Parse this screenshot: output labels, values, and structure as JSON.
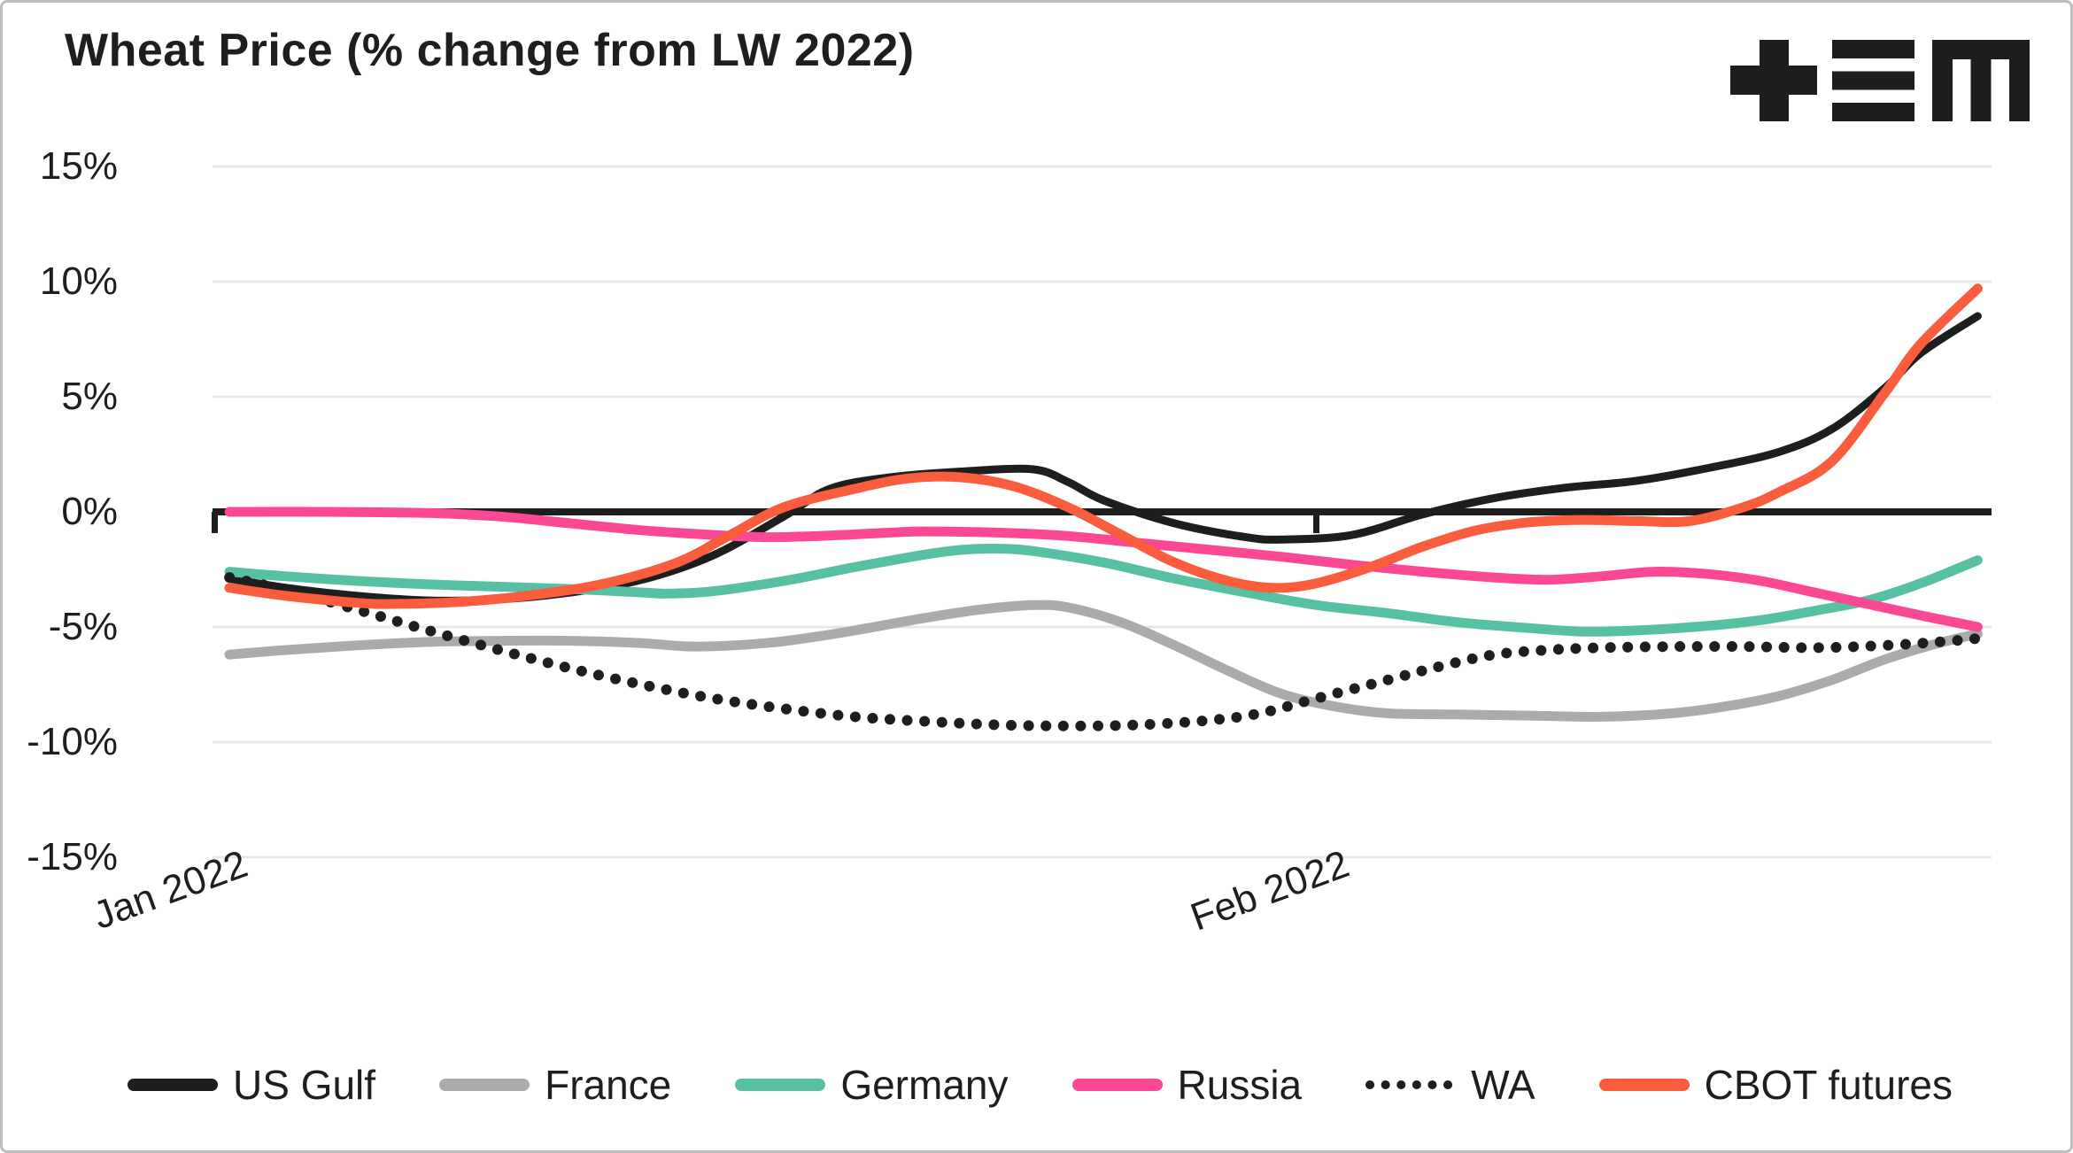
{
  "header": {
    "title": "Wheat Price (% change from LW 2022)",
    "logo_icon": "plus-triple-bar-m-logo"
  },
  "colors": {
    "text": "#1e1e1e",
    "gridline": "#e8e8e8",
    "zero_axis": "#1e1e1e",
    "background": "#ffffff",
    "frame_border": "#bcbec0"
  },
  "chart_data": {
    "type": "line",
    "title": "Wheat Price (% change from LW 2022)",
    "grid": true,
    "legend_position": "bottom",
    "x_axis": {
      "unit": "days since Jan 1 2022",
      "ticks": [
        {
          "label": "Jan 2022",
          "day": 0
        },
        {
          "label": "Feb 2022",
          "day": 31
        }
      ],
      "range_days": [
        0,
        50
      ],
      "label_rotation_deg": -20
    },
    "y_axis": {
      "ticks": [
        {
          "label": "15%",
          "value": 15
        },
        {
          "label": "10%",
          "value": 10
        },
        {
          "label": "5%",
          "value": 5
        },
        {
          "label": "0%",
          "value": 0
        },
        {
          "label": "-5%",
          "value": -5
        },
        {
          "label": "-10%",
          "value": -10
        },
        {
          "label": "-15%",
          "value": -15
        }
      ],
      "zero_line": true
    },
    "series": [
      {
        "name": "US Gulf",
        "color": "#1e1e1e",
        "style": "solid",
        "width": 9,
        "points": [
          [
            0.4,
            -2.9
          ],
          [
            2,
            -3.3
          ],
          [
            4,
            -3.65
          ],
          [
            6,
            -3.85
          ],
          [
            8,
            -3.8
          ],
          [
            10,
            -3.5
          ],
          [
            12,
            -2.95
          ],
          [
            14,
            -1.9
          ],
          [
            16,
            -0.2
          ],
          [
            17.3,
            1.0
          ],
          [
            19,
            1.5
          ],
          [
            21,
            1.75
          ],
          [
            23,
            1.85
          ],
          [
            24,
            1.3
          ],
          [
            25,
            0.5
          ],
          [
            27,
            -0.5
          ],
          [
            29,
            -1.1
          ],
          [
            30,
            -1.2
          ],
          [
            32,
            -1.0
          ],
          [
            34,
            -0.1
          ],
          [
            36,
            0.6
          ],
          [
            38,
            1.05
          ],
          [
            40,
            1.35
          ],
          [
            42,
            1.9
          ],
          [
            44,
            2.6
          ],
          [
            45.5,
            3.6
          ],
          [
            47,
            5.4
          ],
          [
            48,
            6.9
          ],
          [
            49.6,
            8.5
          ]
        ]
      },
      {
        "name": "France",
        "color": "#ababab",
        "style": "solid",
        "width": 11,
        "points": [
          [
            0.4,
            -6.2
          ],
          [
            2,
            -6.0
          ],
          [
            4,
            -5.8
          ],
          [
            6,
            -5.65
          ],
          [
            8,
            -5.6
          ],
          [
            10,
            -5.6
          ],
          [
            12,
            -5.7
          ],
          [
            13.5,
            -5.85
          ],
          [
            15.5,
            -5.7
          ],
          [
            17,
            -5.4
          ],
          [
            18,
            -5.15
          ],
          [
            20,
            -4.6
          ],
          [
            21.5,
            -4.25
          ],
          [
            23,
            -4.05
          ],
          [
            24,
            -4.15
          ],
          [
            25.5,
            -4.8
          ],
          [
            27,
            -5.8
          ],
          [
            28.5,
            -6.9
          ],
          [
            30,
            -7.9
          ],
          [
            31.5,
            -8.45
          ],
          [
            33,
            -8.75
          ],
          [
            35,
            -8.8
          ],
          [
            37,
            -8.85
          ],
          [
            39,
            -8.9
          ],
          [
            41,
            -8.75
          ],
          [
            42.5,
            -8.45
          ],
          [
            44,
            -8.0
          ],
          [
            45.5,
            -7.3
          ],
          [
            47,
            -6.4
          ],
          [
            48.5,
            -5.7
          ],
          [
            49.6,
            -5.3
          ]
        ]
      },
      {
        "name": "Germany",
        "color": "#58c0a2",
        "style": "solid",
        "width": 11,
        "points": [
          [
            0.4,
            -2.6
          ],
          [
            2,
            -2.8
          ],
          [
            4,
            -3.0
          ],
          [
            6,
            -3.15
          ],
          [
            8,
            -3.25
          ],
          [
            10,
            -3.35
          ],
          [
            12,
            -3.5
          ],
          [
            12.7,
            -3.55
          ],
          [
            14,
            -3.45
          ],
          [
            16,
            -3.0
          ],
          [
            18,
            -2.4
          ],
          [
            20,
            -1.85
          ],
          [
            21,
            -1.65
          ],
          [
            22,
            -1.6
          ],
          [
            23,
            -1.7
          ],
          [
            25,
            -2.2
          ],
          [
            27,
            -2.9
          ],
          [
            29,
            -3.5
          ],
          [
            31,
            -4.05
          ],
          [
            33,
            -4.4
          ],
          [
            35,
            -4.8
          ],
          [
            37,
            -5.05
          ],
          [
            38.5,
            -5.2
          ],
          [
            40,
            -5.15
          ],
          [
            42,
            -4.95
          ],
          [
            43.5,
            -4.7
          ],
          [
            45,
            -4.3
          ],
          [
            46.5,
            -3.85
          ],
          [
            48,
            -3.1
          ],
          [
            49.6,
            -2.1
          ]
        ]
      },
      {
        "name": "Russia",
        "color": "#fb4895",
        "style": "solid",
        "width": 11,
        "points": [
          [
            0.4,
            0.0
          ],
          [
            3,
            0.0
          ],
          [
            6,
            -0.05
          ],
          [
            8,
            -0.2
          ],
          [
            10,
            -0.5
          ],
          [
            12,
            -0.8
          ],
          [
            14,
            -1.0
          ],
          [
            15.5,
            -1.1
          ],
          [
            17,
            -1.05
          ],
          [
            19,
            -0.9
          ],
          [
            20,
            -0.85
          ],
          [
            22,
            -0.9
          ],
          [
            24,
            -1.05
          ],
          [
            26,
            -1.35
          ],
          [
            28,
            -1.65
          ],
          [
            30,
            -1.95
          ],
          [
            32,
            -2.3
          ],
          [
            34,
            -2.6
          ],
          [
            36,
            -2.85
          ],
          [
            37.5,
            -2.95
          ],
          [
            39,
            -2.8
          ],
          [
            40.5,
            -2.6
          ],
          [
            42,
            -2.7
          ],
          [
            43.5,
            -3.0
          ],
          [
            45,
            -3.5
          ],
          [
            46.5,
            -4.0
          ],
          [
            48,
            -4.5
          ],
          [
            49.6,
            -5.0
          ]
        ]
      },
      {
        "name": "WA",
        "color": "#1e1e1e",
        "style": "dotted",
        "width": 12,
        "points": [
          [
            0.4,
            -2.85
          ],
          [
            2,
            -3.4
          ],
          [
            4,
            -4.25
          ],
          [
            6,
            -5.15
          ],
          [
            8,
            -6.0
          ],
          [
            10,
            -6.8
          ],
          [
            12,
            -7.5
          ],
          [
            14,
            -8.1
          ],
          [
            16,
            -8.55
          ],
          [
            18,
            -8.9
          ],
          [
            20,
            -9.1
          ],
          [
            22,
            -9.25
          ],
          [
            24,
            -9.3
          ],
          [
            26,
            -9.25
          ],
          [
            28,
            -9.05
          ],
          [
            29.4,
            -8.75
          ],
          [
            31,
            -8.1
          ],
          [
            33,
            -7.3
          ],
          [
            34.5,
            -6.7
          ],
          [
            36,
            -6.2
          ],
          [
            37.5,
            -6.0
          ],
          [
            39,
            -5.9
          ],
          [
            41,
            -5.85
          ],
          [
            43,
            -5.85
          ],
          [
            45,
            -5.9
          ],
          [
            47,
            -5.8
          ],
          [
            48.5,
            -5.65
          ],
          [
            49.6,
            -5.5
          ]
        ]
      },
      {
        "name": "CBOT futures",
        "color": "#f95d3e",
        "style": "solid",
        "width": 11,
        "points": [
          [
            0.4,
            -3.3
          ],
          [
            2,
            -3.65
          ],
          [
            4,
            -3.95
          ],
          [
            5,
            -4.0
          ],
          [
            7,
            -3.9
          ],
          [
            9,
            -3.6
          ],
          [
            11,
            -3.1
          ],
          [
            13,
            -2.2
          ],
          [
            14.5,
            -1.0
          ],
          [
            16,
            0.2
          ],
          [
            18,
            1.0
          ],
          [
            19.5,
            1.45
          ],
          [
            21,
            1.5
          ],
          [
            22.5,
            1.1
          ],
          [
            24,
            0.2
          ],
          [
            25.5,
            -1.0
          ],
          [
            27,
            -2.2
          ],
          [
            28.5,
            -3.0
          ],
          [
            29.8,
            -3.3
          ],
          [
            31,
            -3.1
          ],
          [
            32.5,
            -2.4
          ],
          [
            34,
            -1.5
          ],
          [
            35.5,
            -0.8
          ],
          [
            37,
            -0.45
          ],
          [
            38.5,
            -0.35
          ],
          [
            40,
            -0.4
          ],
          [
            41.5,
            -0.4
          ],
          [
            43,
            0.2
          ],
          [
            44,
            0.85
          ],
          [
            45.5,
            2.2
          ],
          [
            47,
            5.2
          ],
          [
            48,
            7.3
          ],
          [
            49.6,
            9.7
          ]
        ]
      }
    ]
  }
}
